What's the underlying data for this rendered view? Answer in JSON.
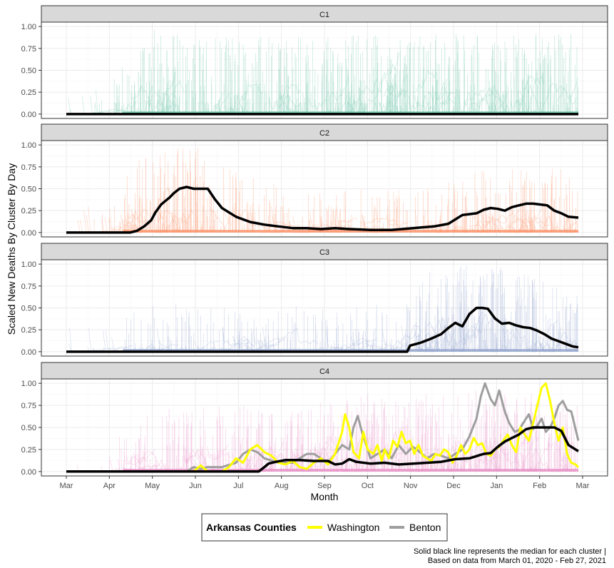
{
  "chart_data": {
    "type": "line",
    "facet_labels": [
      "C1",
      "C2",
      "C3",
      "C4"
    ],
    "xlabel": "Month",
    "ylabel": "Scaled New Deaths By Cluster By Day",
    "x_ticks": [
      "Mar",
      "Apr",
      "May",
      "Jun",
      "Jul",
      "Aug",
      "Sep",
      "Oct",
      "Nov",
      "Dec",
      "Jan",
      "Feb",
      "Mar"
    ],
    "x_range_days": [
      0,
      365
    ],
    "y_ticks": [
      "0.00",
      "0.25",
      "0.50",
      "0.75",
      "1.00"
    ],
    "ylim": [
      -0.05,
      1.05
    ],
    "cluster_colors": {
      "C1": "#66c2a5",
      "C2": "#fc8d62",
      "C3": "#8da0cb",
      "C4": "#e78ac3"
    },
    "medians": {
      "C1": {
        "days": [
          0,
          362
        ],
        "values": [
          0.0,
          0.0
        ]
      },
      "C2": {
        "days": [
          0,
          45,
          50,
          55,
          60,
          63,
          67,
          70,
          73,
          76,
          80,
          85,
          90,
          96,
          100,
          105,
          110,
          120,
          130,
          140,
          150,
          160,
          170,
          180,
          190,
          200,
          215,
          230,
          245,
          260,
          270,
          275,
          280,
          285,
          290,
          295,
          300,
          305,
          310,
          315,
          320,
          325,
          330,
          340,
          345,
          350,
          355,
          362
        ],
        "values": [
          0.0,
          0.0,
          0.02,
          0.07,
          0.14,
          0.23,
          0.32,
          0.36,
          0.4,
          0.45,
          0.5,
          0.52,
          0.5,
          0.5,
          0.5,
          0.38,
          0.28,
          0.18,
          0.12,
          0.09,
          0.07,
          0.05,
          0.05,
          0.04,
          0.05,
          0.04,
          0.03,
          0.03,
          0.05,
          0.07,
          0.1,
          0.15,
          0.2,
          0.21,
          0.22,
          0.26,
          0.28,
          0.27,
          0.25,
          0.29,
          0.31,
          0.33,
          0.33,
          0.31,
          0.25,
          0.22,
          0.18,
          0.17
        ]
      },
      "C3": {
        "days": [
          0,
          241,
          243,
          250,
          258,
          265,
          270,
          275,
          280,
          285,
          290,
          294,
          298,
          303,
          308,
          313,
          318,
          323,
          328,
          333,
          338,
          343,
          348,
          353,
          358,
          362
        ],
        "values": [
          0.0,
          0.0,
          0.07,
          0.1,
          0.15,
          0.2,
          0.27,
          0.33,
          0.29,
          0.43,
          0.5,
          0.5,
          0.49,
          0.38,
          0.32,
          0.33,
          0.3,
          0.28,
          0.27,
          0.24,
          0.2,
          0.15,
          0.12,
          0.09,
          0.06,
          0.05
        ]
      },
      "C4": {
        "days": [
          0,
          136,
          140,
          143,
          148,
          155,
          165,
          175,
          185,
          190,
          195,
          200,
          205,
          215,
          225,
          235,
          245,
          255,
          265,
          275,
          285,
          295,
          300,
          305,
          310,
          315,
          320,
          325,
          330,
          335,
          340,
          345,
          350,
          355,
          362
        ],
        "values": [
          0.0,
          0.0,
          0.05,
          0.09,
          0.11,
          0.13,
          0.13,
          0.12,
          0.12,
          0.08,
          0.09,
          0.14,
          0.11,
          0.09,
          0.1,
          0.08,
          0.09,
          0.1,
          0.11,
          0.14,
          0.15,
          0.2,
          0.21,
          0.28,
          0.34,
          0.38,
          0.42,
          0.48,
          0.5,
          0.5,
          0.5,
          0.5,
          0.46,
          0.3,
          0.23
        ]
      }
    },
    "county_series": [
      {
        "name": "Washington",
        "color": "#ffff00",
        "days": [
          0,
          90,
          95,
          100,
          105,
          110,
          115,
          120,
          125,
          130,
          135,
          140,
          145,
          150,
          155,
          160,
          165,
          170,
          175,
          180,
          185,
          190,
          195,
          197,
          200,
          203,
          207,
          210,
          213,
          217,
          220,
          223,
          225,
          228,
          231,
          234,
          237,
          240,
          243,
          246,
          249,
          252,
          255,
          258,
          261,
          264,
          267,
          270,
          273,
          276,
          279,
          282,
          285,
          288,
          291,
          294,
          297,
          300,
          303,
          306,
          309,
          312,
          315,
          318,
          321,
          324,
          327,
          330,
          333,
          336,
          339,
          342,
          345,
          348,
          351,
          354,
          357,
          360,
          362
        ],
        "values": [
          0.0,
          0.0,
          0.07,
          0.0,
          0.0,
          0.0,
          0.05,
          0.15,
          0.1,
          0.25,
          0.3,
          0.22,
          0.18,
          0.1,
          0.08,
          0.12,
          0.05,
          0.03,
          0.1,
          0.15,
          0.08,
          0.2,
          0.45,
          0.65,
          0.5,
          0.22,
          0.15,
          0.45,
          0.25,
          0.2,
          0.3,
          0.12,
          0.25,
          0.15,
          0.35,
          0.28,
          0.45,
          0.32,
          0.35,
          0.2,
          0.3,
          0.18,
          0.15,
          0.12,
          0.2,
          0.18,
          0.25,
          0.22,
          0.1,
          0.18,
          0.3,
          0.2,
          0.25,
          0.38,
          0.3,
          0.32,
          0.2,
          0.18,
          0.25,
          0.28,
          0.35,
          0.42,
          0.3,
          0.22,
          0.5,
          0.42,
          0.35,
          0.55,
          0.75,
          0.95,
          1.0,
          0.8,
          0.55,
          0.35,
          0.5,
          0.2,
          0.1,
          0.08,
          0.05
        ]
      },
      {
        "name": "Benton",
        "color": "#9e9e9e",
        "days": [
          0,
          85,
          90,
          95,
          100,
          110,
          120,
          125,
          130,
          135,
          140,
          150,
          160,
          165,
          170,
          175,
          180,
          185,
          190,
          195,
          200,
          203,
          206,
          209,
          212,
          215,
          220,
          225,
          230,
          235,
          240,
          245,
          250,
          255,
          260,
          265,
          270,
          275,
          280,
          285,
          290,
          293,
          296,
          300,
          303,
          306,
          310,
          313,
          317,
          320,
          323,
          327,
          330,
          333,
          336,
          339,
          342,
          345,
          348,
          351,
          354,
          357,
          362
        ],
        "values": [
          0.0,
          0.0,
          0.05,
          0.03,
          0.05,
          0.05,
          0.1,
          0.2,
          0.25,
          0.22,
          0.15,
          0.1,
          0.1,
          0.15,
          0.2,
          0.2,
          0.15,
          0.1,
          0.2,
          0.3,
          0.25,
          0.5,
          0.63,
          0.45,
          0.3,
          0.15,
          0.2,
          0.25,
          0.15,
          0.3,
          0.2,
          0.28,
          0.22,
          0.15,
          0.2,
          0.18,
          0.15,
          0.2,
          0.25,
          0.4,
          0.6,
          0.85,
          1.0,
          0.82,
          0.75,
          0.92,
          0.68,
          0.55,
          0.45,
          0.47,
          0.55,
          0.65,
          0.48,
          0.52,
          0.6,
          0.45,
          0.5,
          0.6,
          0.75,
          0.8,
          0.7,
          0.68,
          0.35
        ]
      }
    ],
    "legend": {
      "title": "Arkansas Counties",
      "entries": [
        {
          "name": "Washington",
          "color": "#ffff00"
        },
        {
          "name": "Benton",
          "color": "#9e9e9e"
        }
      ],
      "position": "bottom"
    },
    "caption_lines": [
      "Solid black line represents the median for each cluster |",
      "Based on data from March 01, 2020 - Feb 27, 2021"
    ]
  }
}
